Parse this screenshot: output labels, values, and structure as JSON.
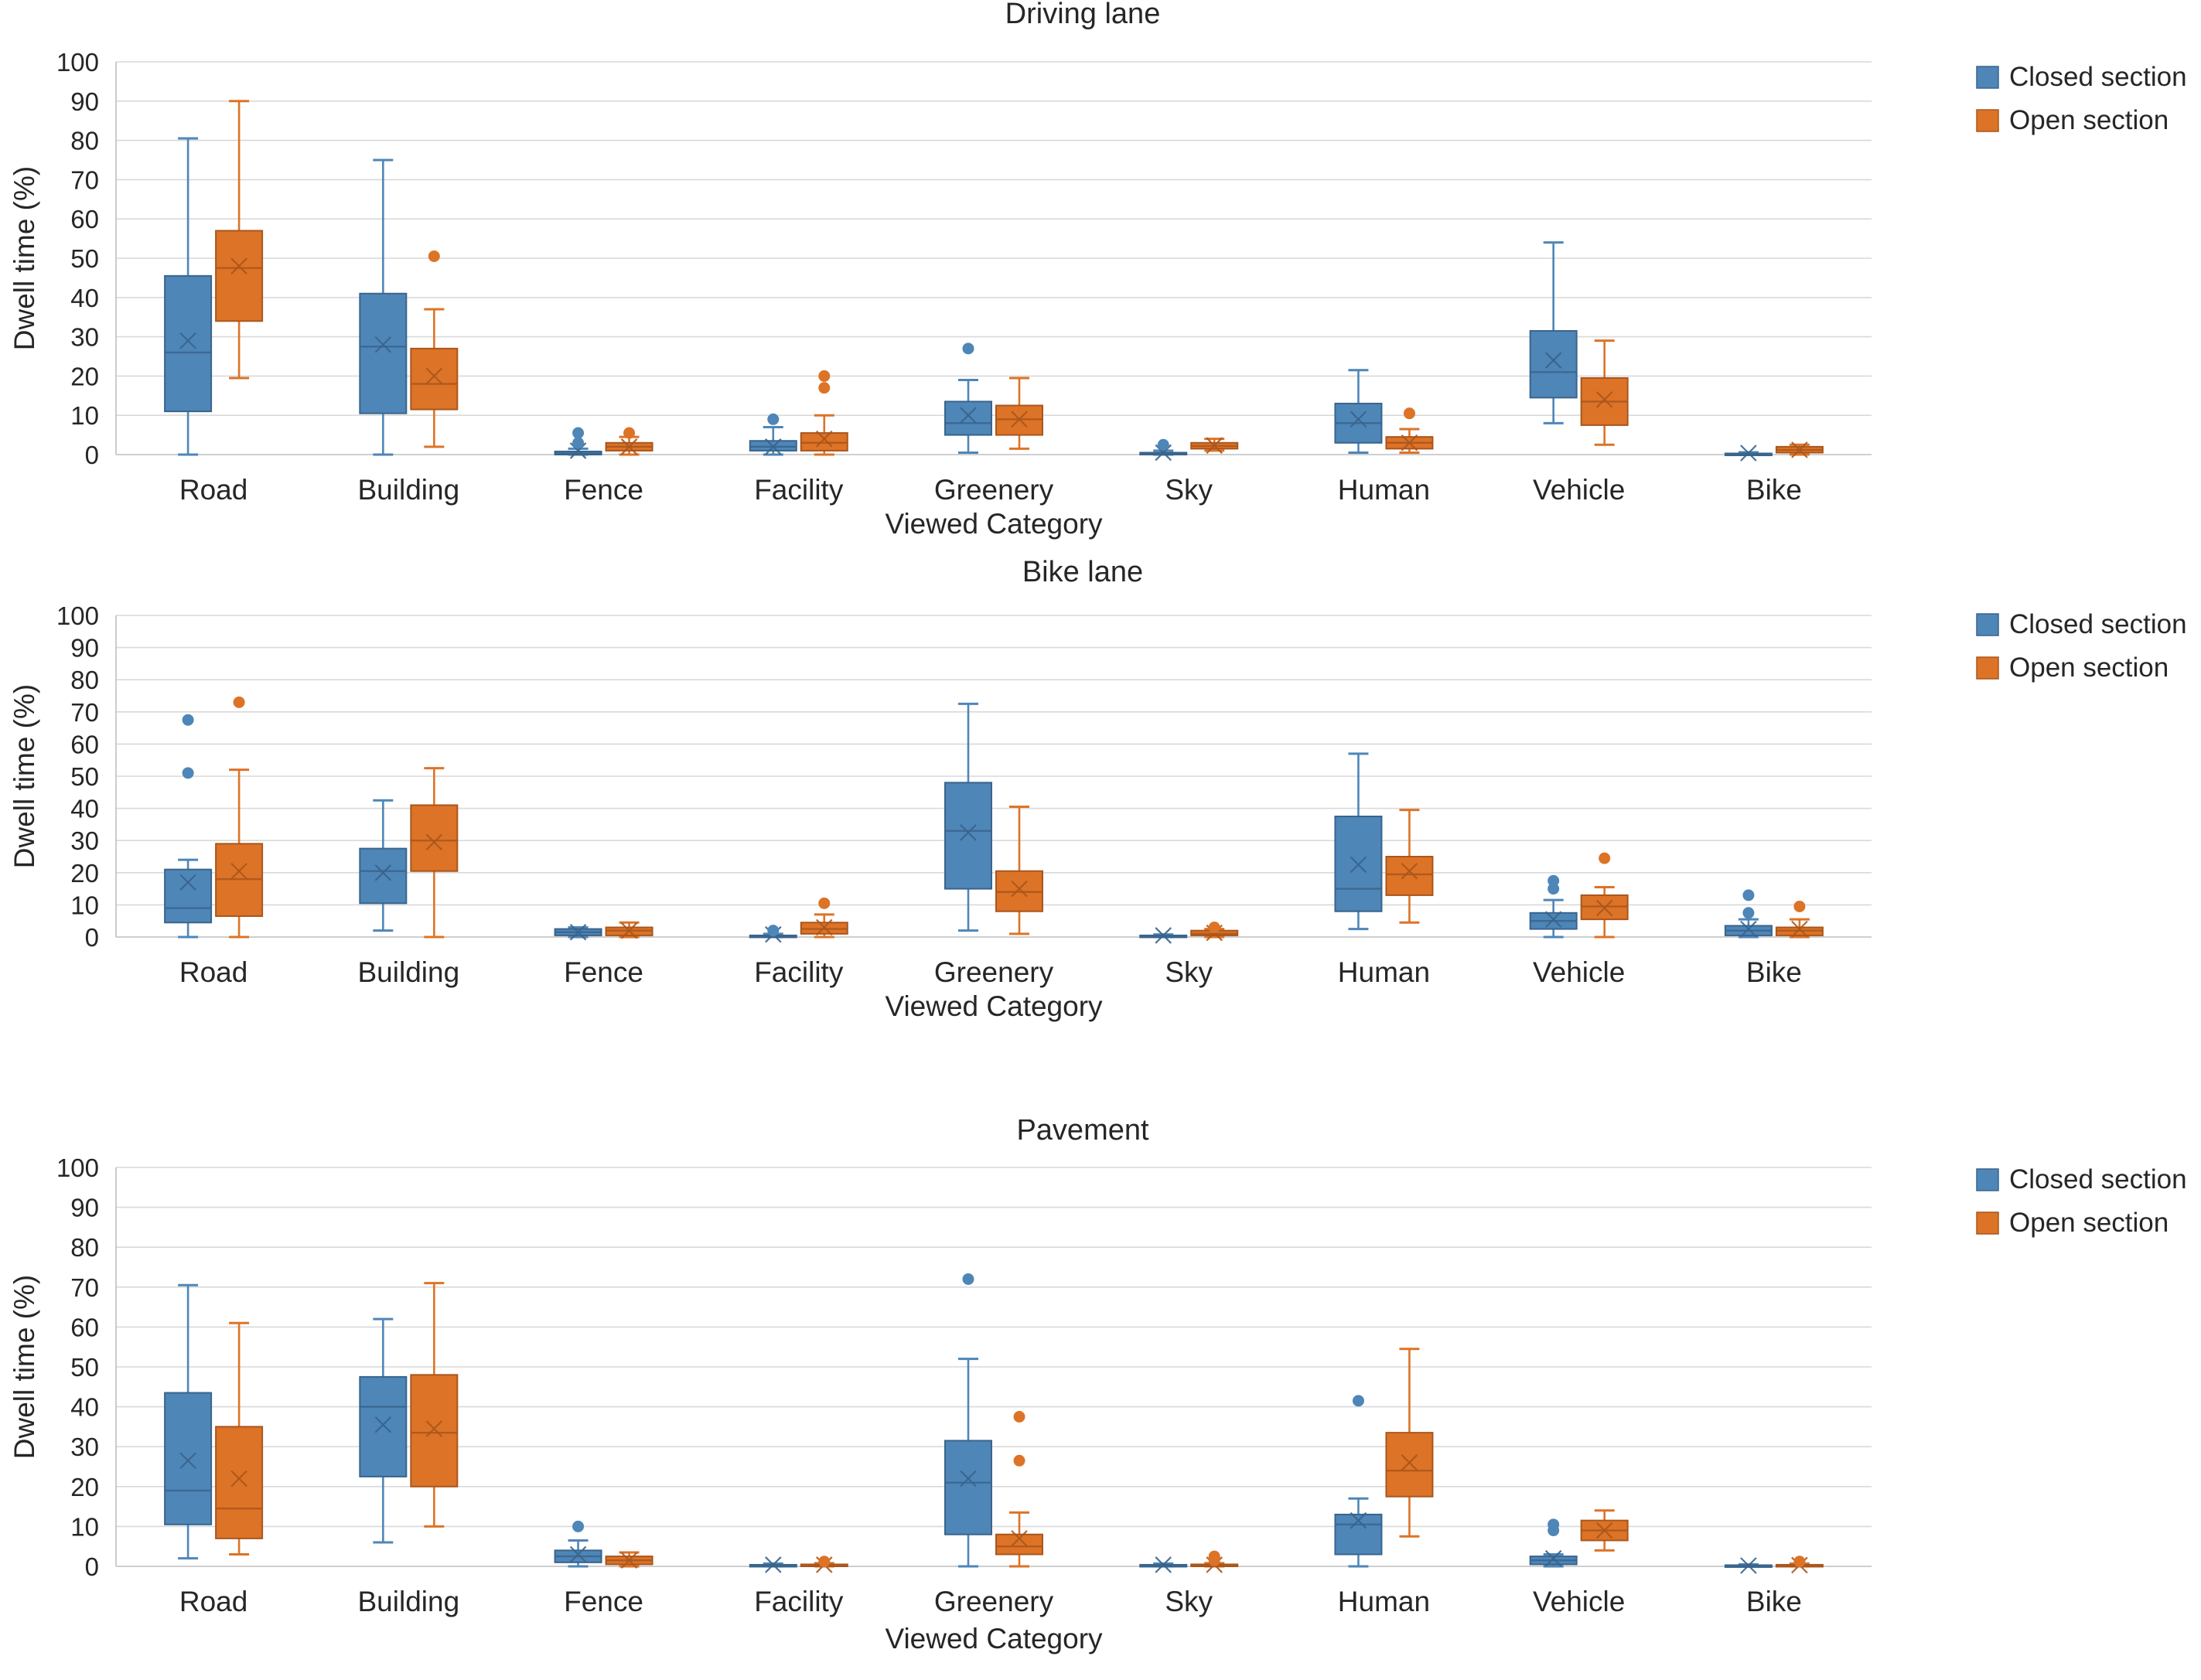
{
  "figure": {
    "y_axis_label": "Dwell time (%)",
    "x_axis_label": "Viewed Category"
  },
  "legend": {
    "items": [
      {
        "label": "Closed section",
        "color": "#4E86B8"
      },
      {
        "label": "Open section",
        "color": "#DD7327"
      }
    ]
  },
  "axes": {
    "y_label": "Dwell time (%)",
    "x_label": "Viewed Category",
    "y_min": 0,
    "y_max": 100,
    "y_ticks": [
      100,
      90,
      80,
      70,
      60,
      50,
      40,
      30,
      20,
      10,
      0
    ],
    "grid": true,
    "legend_position": "top-right"
  },
  "chart_data": [
    {
      "type": "boxplot",
      "title": "Driving lane",
      "xlabel": "Viewed Category",
      "ylabel": "Dwell time (%)",
      "ylim": [
        0,
        100
      ],
      "categories": [
        "Road",
        "Building",
        "Fence",
        "Facility",
        "Greenery",
        "Sky",
        "Human",
        "Vehicle",
        "Bike"
      ],
      "series": [
        {
          "name": "Closed section",
          "color": "#4E86B8",
          "boxes": [
            {
              "whisker_low": 0,
              "q1": 11,
              "median": 26,
              "mean": 29,
              "q3": 45.5,
              "whisker_high": 80.5,
              "outliers": []
            },
            {
              "whisker_low": 0,
              "q1": 10.5,
              "median": 27.5,
              "mean": 28,
              "q3": 41,
              "whisker_high": 75,
              "outliers": []
            },
            {
              "whisker_low": 0,
              "q1": 0,
              "median": 0.3,
              "mean": 1,
              "q3": 0.8,
              "whisker_high": 1.5,
              "outliers": [
                3,
                5.5
              ]
            },
            {
              "whisker_low": 0,
              "q1": 1,
              "median": 2,
              "mean": 2,
              "q3": 3.5,
              "whisker_high": 7,
              "outliers": [
                9
              ]
            },
            {
              "whisker_low": 0.5,
              "q1": 5,
              "median": 8,
              "mean": 10,
              "q3": 13.5,
              "whisker_high": 19,
              "outliers": [
                27
              ]
            },
            {
              "whisker_low": 0,
              "q1": 0,
              "median": 0.2,
              "mean": 0.5,
              "q3": 0.5,
              "whisker_high": 1,
              "outliers": [
                2.5
              ]
            },
            {
              "whisker_low": 0.5,
              "q1": 3,
              "median": 8,
              "mean": 9,
              "q3": 13,
              "whisker_high": 21.5,
              "outliers": []
            },
            {
              "whisker_low": 8,
              "q1": 14.5,
              "median": 21,
              "mean": 24,
              "q3": 31.5,
              "whisker_high": 54,
              "outliers": []
            },
            {
              "whisker_low": 0,
              "q1": 0,
              "median": 0.1,
              "mean": 0.4,
              "q3": 0.3,
              "whisker_high": 0.6,
              "outliers": []
            }
          ]
        },
        {
          "name": "Open section",
          "color": "#DD7327",
          "boxes": [
            {
              "whisker_low": 19.5,
              "q1": 34,
              "median": 47.5,
              "mean": 48,
              "q3": 57,
              "whisker_high": 90,
              "outliers": []
            },
            {
              "whisker_low": 2,
              "q1": 11.5,
              "median": 18,
              "mean": 20,
              "q3": 27,
              "whisker_high": 37,
              "outliers": [
                50.5
              ]
            },
            {
              "whisker_low": 0,
              "q1": 1,
              "median": 2,
              "mean": 2,
              "q3": 3,
              "whisker_high": 4.5,
              "outliers": [
                5.5
              ]
            },
            {
              "whisker_low": 0,
              "q1": 1,
              "median": 3,
              "mean": 4,
              "q3": 5.5,
              "whisker_high": 10,
              "outliers": [
                17,
                20
              ]
            },
            {
              "whisker_low": 1.5,
              "q1": 5,
              "median": 9,
              "mean": 9,
              "q3": 12.5,
              "whisker_high": 19.5,
              "outliers": []
            },
            {
              "whisker_low": 1,
              "q1": 1.5,
              "median": 2.2,
              "mean": 2.3,
              "q3": 3,
              "whisker_high": 4,
              "outliers": []
            },
            {
              "whisker_low": 0.5,
              "q1": 1.5,
              "median": 3,
              "mean": 3,
              "q3": 4.5,
              "whisker_high": 6.5,
              "outliers": [
                10.5
              ]
            },
            {
              "whisker_low": 2.5,
              "q1": 7.5,
              "median": 13.5,
              "mean": 14,
              "q3": 19.5,
              "whisker_high": 29,
              "outliers": []
            },
            {
              "whisker_low": 0,
              "q1": 0.5,
              "median": 1.2,
              "mean": 1.2,
              "q3": 2,
              "whisker_high": 2.5,
              "outliers": []
            }
          ]
        }
      ]
    },
    {
      "type": "boxplot",
      "title": "Bike lane",
      "xlabel": "Viewed Category",
      "ylabel": "Dwell time (%)",
      "ylim": [
        0,
        100
      ],
      "categories": [
        "Road",
        "Building",
        "Fence",
        "Facility",
        "Greenery",
        "Sky",
        "Human",
        "Vehicle",
        "Bike"
      ],
      "series": [
        {
          "name": "Closed section",
          "color": "#4E86B8",
          "boxes": [
            {
              "whisker_low": 0,
              "q1": 4.5,
              "median": 9,
              "mean": 17,
              "q3": 21,
              "whisker_high": 24,
              "outliers": [
                51,
                67.5
              ]
            },
            {
              "whisker_low": 2,
              "q1": 10.5,
              "median": 20.5,
              "mean": 20,
              "q3": 27.5,
              "whisker_high": 42.5,
              "outliers": []
            },
            {
              "whisker_low": 0,
              "q1": 0.5,
              "median": 1.5,
              "mean": 1.5,
              "q3": 2.5,
              "whisker_high": 3,
              "outliers": []
            },
            {
              "whisker_low": 0,
              "q1": 0,
              "median": 0.2,
              "mean": 0.8,
              "q3": 0.5,
              "whisker_high": 1,
              "outliers": [
                2
              ]
            },
            {
              "whisker_low": 2,
              "q1": 15,
              "median": 33,
              "mean": 32.5,
              "q3": 48,
              "whisker_high": 72.5,
              "outliers": []
            },
            {
              "whisker_low": 0,
              "q1": 0,
              "median": 0.2,
              "mean": 0.5,
              "q3": 0.5,
              "whisker_high": 0.8,
              "outliers": []
            },
            {
              "whisker_low": 2.5,
              "q1": 8,
              "median": 15,
              "mean": 22.5,
              "q3": 37.5,
              "whisker_high": 57,
              "outliers": []
            },
            {
              "whisker_low": 0,
              "q1": 2.5,
              "median": 5,
              "mean": 5.5,
              "q3": 7.5,
              "whisker_high": 11.5,
              "outliers": [
                15,
                17.5
              ]
            },
            {
              "whisker_low": 0,
              "q1": 0.5,
              "median": 2,
              "mean": 2.5,
              "q3": 3.5,
              "whisker_high": 5.5,
              "outliers": [
                7.5,
                13
              ]
            }
          ]
        },
        {
          "name": "Open section",
          "color": "#DD7327",
          "boxes": [
            {
              "whisker_low": 0,
              "q1": 6.5,
              "median": 18,
              "mean": 20.5,
              "q3": 29,
              "whisker_high": 52,
              "outliers": [
                73
              ]
            },
            {
              "whisker_low": 0,
              "q1": 20.5,
              "median": 30,
              "mean": 29.5,
              "q3": 41,
              "whisker_high": 52.5,
              "outliers": []
            },
            {
              "whisker_low": 0,
              "q1": 0.5,
              "median": 2,
              "mean": 2,
              "q3": 3,
              "whisker_high": 4.5,
              "outliers": []
            },
            {
              "whisker_low": 0,
              "q1": 1,
              "median": 2.5,
              "mean": 3,
              "q3": 4.5,
              "whisker_high": 7,
              "outliers": [
                10.5
              ]
            },
            {
              "whisker_low": 1,
              "q1": 8,
              "median": 14,
              "mean": 15,
              "q3": 20.5,
              "whisker_high": 40.5,
              "outliers": []
            },
            {
              "whisker_low": 0,
              "q1": 0.5,
              "median": 1,
              "mean": 1.3,
              "q3": 2,
              "whisker_high": 2.5,
              "outliers": [
                3
              ]
            },
            {
              "whisker_low": 4.5,
              "q1": 13,
              "median": 19.5,
              "mean": 20.5,
              "q3": 25,
              "whisker_high": 39.5,
              "outliers": []
            },
            {
              "whisker_low": 0,
              "q1": 5.5,
              "median": 9.5,
              "mean": 9,
              "q3": 13,
              "whisker_high": 15.5,
              "outliers": [
                24.5
              ]
            },
            {
              "whisker_low": 0,
              "q1": 0.5,
              "median": 2,
              "mean": 2.5,
              "q3": 3,
              "whisker_high": 5.5,
              "outliers": [
                9.5
              ]
            }
          ]
        }
      ]
    },
    {
      "type": "boxplot",
      "title": "Pavement",
      "xlabel": "Viewed Category",
      "ylabel": "Dwell time (%)",
      "ylim": [
        0,
        100
      ],
      "categories": [
        "Road",
        "Building",
        "Fence",
        "Facility",
        "Greenery",
        "Sky",
        "Human",
        "Vehicle",
        "Bike"
      ],
      "series": [
        {
          "name": "Closed section",
          "color": "#4E86B8",
          "boxes": [
            {
              "whisker_low": 2,
              "q1": 10.5,
              "median": 19,
              "mean": 26.5,
              "q3": 43.5,
              "whisker_high": 70.5,
              "outliers": []
            },
            {
              "whisker_low": 6,
              "q1": 22.5,
              "median": 40,
              "mean": 35.5,
              "q3": 47.5,
              "whisker_high": 62,
              "outliers": []
            },
            {
              "whisker_low": 0,
              "q1": 1,
              "median": 2.5,
              "mean": 3,
              "q3": 4,
              "whisker_high": 6.5,
              "outliers": [
                10
              ]
            },
            {
              "whisker_low": 0,
              "q1": 0,
              "median": 0.2,
              "mean": 0.4,
              "q3": 0.4,
              "whisker_high": 0.7,
              "outliers": []
            },
            {
              "whisker_low": 0,
              "q1": 8,
              "median": 21,
              "mean": 22,
              "q3": 31.5,
              "whisker_high": 52,
              "outliers": [
                72
              ]
            },
            {
              "whisker_low": 0,
              "q1": 0,
              "median": 0.2,
              "mean": 0.4,
              "q3": 0.4,
              "whisker_high": 0.7,
              "outliers": []
            },
            {
              "whisker_low": 0,
              "q1": 3,
              "median": 10.5,
              "mean": 11.5,
              "q3": 13,
              "whisker_high": 17,
              "outliers": [
                41.5
              ]
            },
            {
              "whisker_low": 0,
              "q1": 0.5,
              "median": 1.5,
              "mean": 2,
              "q3": 2.5,
              "whisker_high": 3,
              "outliers": [
                9,
                10.5
              ]
            },
            {
              "whisker_low": 0,
              "q1": 0,
              "median": 0.1,
              "mean": 0.2,
              "q3": 0.3,
              "whisker_high": 0.5,
              "outliers": []
            }
          ]
        },
        {
          "name": "Open section",
          "color": "#DD7327",
          "boxes": [
            {
              "whisker_low": 3,
              "q1": 7,
              "median": 14.5,
              "mean": 22,
              "q3": 35,
              "whisker_high": 61,
              "outliers": []
            },
            {
              "whisker_low": 10,
              "q1": 20,
              "median": 33.5,
              "mean": 34.5,
              "q3": 48,
              "whisker_high": 71,
              "outliers": []
            },
            {
              "whisker_low": 0,
              "q1": 0.5,
              "median": 1.5,
              "mean": 1.5,
              "q3": 2.5,
              "whisker_high": 3.5,
              "outliers": []
            },
            {
              "whisker_low": 0,
              "q1": 0,
              "median": 0.2,
              "mean": 0.4,
              "q3": 0.5,
              "whisker_high": 0.8,
              "outliers": [
                1.2
              ]
            },
            {
              "whisker_low": 0,
              "q1": 3,
              "median": 5,
              "mean": 7,
              "q3": 8,
              "whisker_high": 13.5,
              "outliers": [
                26.5,
                37.5
              ]
            },
            {
              "whisker_low": 0,
              "q1": 0,
              "median": 0.2,
              "mean": 0.4,
              "q3": 0.5,
              "whisker_high": 0.8,
              "outliers": [
                1.5,
                2.5
              ]
            },
            {
              "whisker_low": 7.5,
              "q1": 17.5,
              "median": 24,
              "mean": 26,
              "q3": 33.5,
              "whisker_high": 54.5,
              "outliers": []
            },
            {
              "whisker_low": 4,
              "q1": 6.5,
              "median": 9,
              "mean": 9,
              "q3": 11.5,
              "whisker_high": 14,
              "outliers": []
            },
            {
              "whisker_low": 0,
              "q1": 0,
              "median": 0.2,
              "mean": 0.3,
              "q3": 0.4,
              "whisker_high": 0.7,
              "outliers": [
                1.2
              ]
            }
          ]
        }
      ]
    }
  ]
}
